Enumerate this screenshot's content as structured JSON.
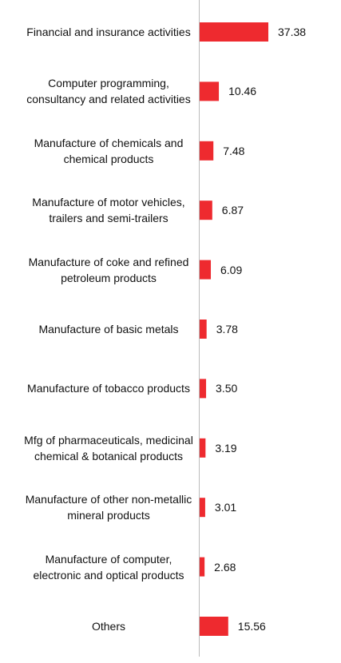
{
  "chart_data": {
    "type": "hbar",
    "categories": [
      "Financial and insurance activities",
      "Computer programming, consultancy and related activities",
      "Manufacture of chemicals and chemical products",
      "Manufacture of motor vehicles, trailers and semi-trailers",
      "Manufacture of coke and refined petroleum products",
      "Manufacture of basic metals",
      "Manufacture of tobacco products",
      "Mfg of pharmaceuticals, medicinal chemical & botanical products",
      "Manufacture of other non-metallic mineral products",
      "Manufacture of computer, electronic and optical products",
      "Others"
    ],
    "values": [
      37.38,
      10.46,
      7.48,
      6.87,
      6.09,
      3.78,
      3.5,
      3.19,
      3.01,
      2.68,
      15.56
    ],
    "value_labels": [
      "37.38",
      "10.46",
      "7.48",
      "6.87",
      "6.09",
      "3.78",
      "3.50",
      "3.19",
      "3.01",
      "2.68",
      "15.56"
    ],
    "color": "#ee2a2f"
  }
}
